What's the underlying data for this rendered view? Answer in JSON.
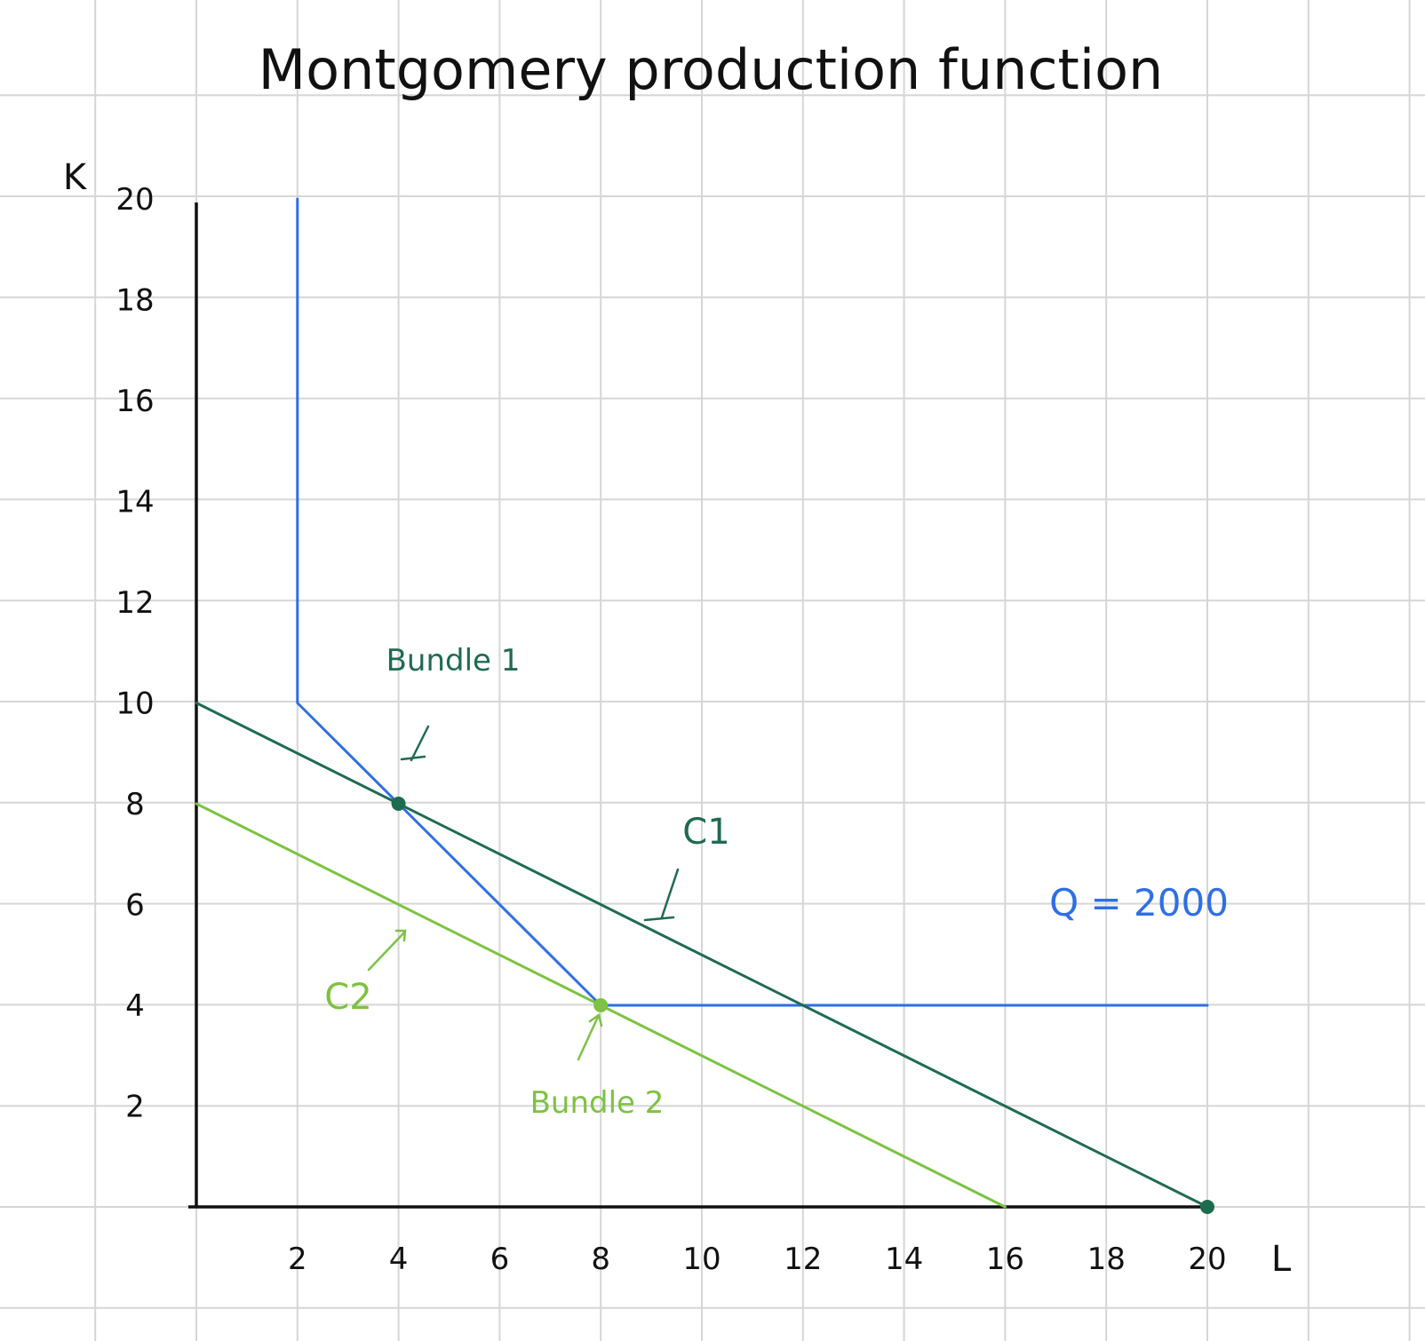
{
  "chart_data": {
    "type": "line",
    "title": "Montgomery production function",
    "xlabel": "L",
    "ylabel": "K",
    "xlim": [
      0,
      20
    ],
    "ylim": [
      0,
      20
    ],
    "x_ticks": [
      "2",
      "4",
      "6",
      "8",
      "10",
      "12",
      "14",
      "16",
      "18",
      "20"
    ],
    "y_ticks": [
      "2",
      "4",
      "6",
      "8",
      "10",
      "12",
      "14",
      "16",
      "18",
      "20"
    ],
    "grid": true,
    "series": [
      {
        "name": "Q = 2000",
        "kind": "isoquant",
        "color": "#2f6fe4",
        "points": [
          [
            2,
            20
          ],
          [
            2,
            10
          ],
          [
            4,
            8
          ],
          [
            8,
            4
          ],
          [
            20,
            4
          ]
        ]
      },
      {
        "name": "C1",
        "kind": "isocost",
        "color": "#1f6b4f",
        "points": [
          [
            0,
            10
          ],
          [
            20,
            0
          ]
        ]
      },
      {
        "name": "C2",
        "kind": "isocost",
        "color": "#7dc242",
        "points": [
          [
            0,
            8
          ],
          [
            16,
            0
          ]
        ]
      }
    ],
    "points": [
      {
        "name": "Bundle 1",
        "x": 4,
        "y": 8,
        "color": "#1f6b4f"
      },
      {
        "name": "Bundle 2",
        "x": 8,
        "y": 4,
        "color": "#7dc242"
      },
      {
        "name": "",
        "x": 20,
        "y": 0,
        "color": "#1f6b4f"
      }
    ],
    "annotations": [
      {
        "text": "Bundle 1",
        "color": "#1f6b4f"
      },
      {
        "text": "Bundle 2",
        "color": "#7dc242"
      },
      {
        "text": "C1",
        "color": "#1f6b4f"
      },
      {
        "text": "C2",
        "color": "#7dc242"
      },
      {
        "text": "Q = 2000",
        "color": "#2f6fe4"
      }
    ]
  },
  "colors": {
    "grid": "#d6d6d6",
    "axis": "#111111",
    "text": "#111111"
  }
}
